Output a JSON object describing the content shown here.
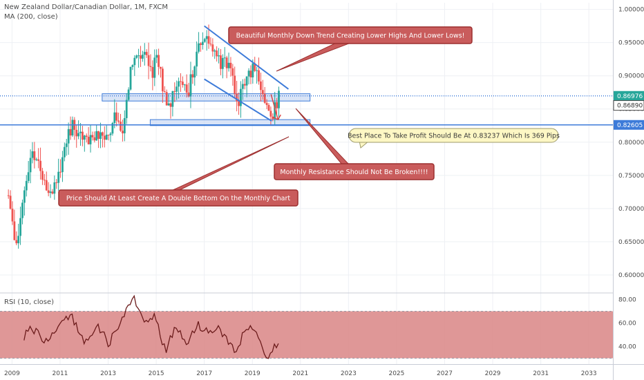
{
  "header": {
    "title": "New Zealand Dollar/Canadian Dollar, 1M, FXCM",
    "indicator": "MA (200, close)"
  },
  "rsi_panel": {
    "title": "RSI (10, close)"
  },
  "colors": {
    "up": "#26a69a",
    "down": "#ef5350",
    "trend": "#3d7bd9",
    "zone_fill": "#c9d9f3",
    "zone_stroke": "#3d7bd9",
    "callout_fill": "#c95c5c",
    "callout_stroke": "#9c2f2f",
    "note_fill": "#fdf7c4",
    "rsi_fill": "#d98585",
    "rsi_line": "#6b1b1b",
    "price_tag_green": "#26a69a",
    "price_tag_blue": "#3d7bd9"
  },
  "annotations": [
    {
      "text": "Beautiful Monthly Down Trend Creating Lower Highs And Lower Lows!",
      "style": "callout"
    },
    {
      "text": "Best Place To Take Profit Should Be At 0.83237 Which Is 369 Pips",
      "style": "note"
    },
    {
      "text": "Monthly Resistance Should Not Be Broken!!!!",
      "style": "callout"
    },
    {
      "text": "Price Should At Least Create A Double Bottom On the Monthly Chart",
      "style": "callout"
    }
  ],
  "price_tags": [
    {
      "text": "0.86976",
      "value": 0.86976,
      "style": "green"
    },
    {
      "text": "0.86890",
      "value": 0.8689,
      "style": "outline"
    },
    {
      "text": "0.82605",
      "value": 0.82605,
      "style": "blue"
    }
  ],
  "chart_data": {
    "type": "candlestick",
    "title": "New Zealand Dollar/Canadian Dollar, 1M, FXCM",
    "x_axis": {
      "ticks": [
        "2009",
        "2011",
        "2013",
        "2015",
        "2017",
        "2019",
        "2021",
        "2023",
        "2025",
        "2027",
        "2029",
        "2031",
        "2033"
      ],
      "range": [
        2008.5,
        2034
      ]
    },
    "y_axis": {
      "ticks": [
        "1.00000",
        "0.95000",
        "0.90000",
        "0.85000",
        "0.80000",
        "0.75000",
        "0.70000",
        "0.65000",
        "0.60000"
      ],
      "range": [
        0.575,
        1.01
      ]
    },
    "anchors": [
      {
        "t": 2008.85,
        "p": 0.72
      },
      {
        "t": 2009.15,
        "p": 0.63
      },
      {
        "t": 2009.4,
        "p": 0.7
      },
      {
        "t": 2009.8,
        "p": 0.78
      },
      {
        "t": 2010.3,
        "p": 0.75
      },
      {
        "t": 2010.6,
        "p": 0.72
      },
      {
        "t": 2011.0,
        "p": 0.76
      },
      {
        "t": 2011.5,
        "p": 0.83
      },
      {
        "t": 2012.0,
        "p": 0.8
      },
      {
        "t": 2012.5,
        "p": 0.81
      },
      {
        "t": 2013.0,
        "p": 0.8
      },
      {
        "t": 2013.3,
        "p": 0.84
      },
      {
        "t": 2013.6,
        "p": 0.82
      },
      {
        "t": 2014.0,
        "p": 0.92
      },
      {
        "t": 2014.5,
        "p": 0.94
      },
      {
        "t": 2014.8,
        "p": 0.9
      },
      {
        "t": 2015.0,
        "p": 0.93
      },
      {
        "t": 2015.5,
        "p": 0.85
      },
      {
        "t": 2015.9,
        "p": 0.9
      },
      {
        "t": 2016.3,
        "p": 0.87
      },
      {
        "t": 2016.6,
        "p": 0.92
      },
      {
        "t": 2016.9,
        "p": 0.96
      },
      {
        "t": 2017.3,
        "p": 0.94
      },
      {
        "t": 2017.7,
        "p": 0.92
      },
      {
        "t": 2018.0,
        "p": 0.92
      },
      {
        "t": 2018.4,
        "p": 0.86
      },
      {
        "t": 2018.7,
        "p": 0.89
      },
      {
        "t": 2019.0,
        "p": 0.91
      },
      {
        "t": 2019.3,
        "p": 0.89
      },
      {
        "t": 2019.6,
        "p": 0.86
      },
      {
        "t": 2019.8,
        "p": 0.83
      },
      {
        "t": 2020.0,
        "p": 0.86
      },
      {
        "t": 2020.15,
        "p": 0.8698
      }
    ],
    "trend_lines": [
      {
        "from": [
          2017.0,
          0.975
        ],
        "to": [
          2020.5,
          0.88
        ]
      },
      {
        "from": [
          2017.0,
          0.895
        ],
        "to": [
          2019.8,
          0.832
        ]
      }
    ],
    "zones": [
      {
        "from": 2012.75,
        "to": 2021.4,
        "low": 0.862,
        "high": 0.873
      },
      {
        "from": 2014.75,
        "to": 2021.4,
        "low": 0.825,
        "high": 0.834
      }
    ],
    "horizontal_levels": [
      0.86976,
      0.82605
    ],
    "rsi": {
      "title": "RSI (10, close)",
      "y_ticks": [
        "80.00",
        "60.00",
        "40.00"
      ],
      "range": [
        25,
        85
      ],
      "band": [
        30,
        70
      ],
      "anchors": [
        {
          "t": 2009.5,
          "v": 48
        },
        {
          "t": 2009.8,
          "v": 58
        },
        {
          "t": 2010.3,
          "v": 44
        },
        {
          "t": 2010.8,
          "v": 55
        },
        {
          "t": 2011.4,
          "v": 68
        },
        {
          "t": 2012.0,
          "v": 44
        },
        {
          "t": 2012.6,
          "v": 58
        },
        {
          "t": 2013.0,
          "v": 42
        },
        {
          "t": 2013.6,
          "v": 65
        },
        {
          "t": 2014.1,
          "v": 80
        },
        {
          "t": 2014.5,
          "v": 58
        },
        {
          "t": 2014.9,
          "v": 66
        },
        {
          "t": 2015.4,
          "v": 36
        },
        {
          "t": 2015.8,
          "v": 58
        },
        {
          "t": 2016.3,
          "v": 42
        },
        {
          "t": 2016.7,
          "v": 60
        },
        {
          "t": 2017.1,
          "v": 52
        },
        {
          "t": 2017.5,
          "v": 56
        },
        {
          "t": 2018.0,
          "v": 45
        },
        {
          "t": 2018.3,
          "v": 35
        },
        {
          "t": 2018.6,
          "v": 50
        },
        {
          "t": 2019.0,
          "v": 56
        },
        {
          "t": 2019.4,
          "v": 40
        },
        {
          "t": 2019.7,
          "v": 28
        },
        {
          "t": 2020.1,
          "v": 47
        }
      ]
    }
  }
}
